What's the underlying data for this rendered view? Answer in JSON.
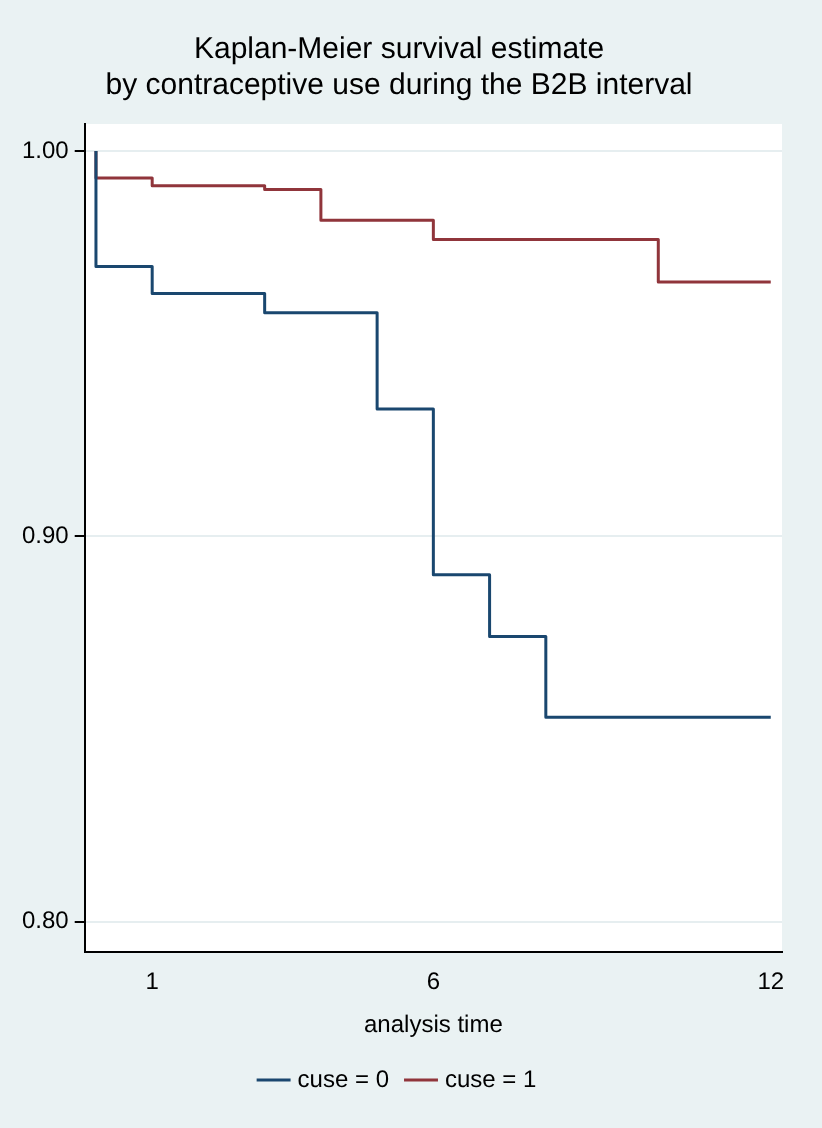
{
  "chart_data": {
    "type": "step",
    "title": "Kaplan-Meier survival estimate",
    "subtitle": "by contraceptive use during the B2B interval",
    "xlabel": "analysis time",
    "xlim": [
      -0.2,
      12.2
    ],
    "xticks": [
      1,
      6,
      12
    ],
    "ylim": [
      0.792,
      1.007
    ],
    "yticks": [
      {
        "value": 0.8,
        "label": "0.80"
      },
      {
        "value": 0.9,
        "label": "0.90"
      },
      {
        "value": 1.0,
        "label": "1.00"
      }
    ],
    "grid": "y",
    "legend": "bottom",
    "series": [
      {
        "name": "cuse = 0",
        "color": "#1a476f",
        "x": [
          0,
          0,
          1,
          3,
          5,
          6,
          7,
          8,
          12
        ],
        "values": [
          1.0,
          0.97,
          0.963,
          0.958,
          0.933,
          0.89,
          0.874,
          0.853,
          0.853
        ]
      },
      {
        "name": "cuse = 1",
        "color": "#90353b",
        "x": [
          0,
          0,
          1,
          3,
          4,
          6,
          10,
          12
        ],
        "values": [
          1.0,
          0.993,
          0.991,
          0.99,
          0.982,
          0.977,
          0.966,
          0.966
        ]
      }
    ]
  }
}
